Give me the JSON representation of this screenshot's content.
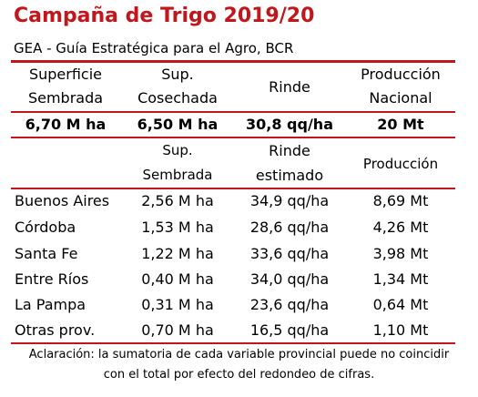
{
  "title": "Campaña de Trigo 2019/20",
  "subtitle": "GEA - Guía Estratégica para el Agro, BCR",
  "national": {
    "headers": {
      "superficie_1": "Superficie",
      "superficie_2": "Sembrada",
      "cosechada_1": "Sup.",
      "cosechada_2": "Cosechada",
      "rinde": "Rinde",
      "produccion_1": "Producción",
      "produccion_2": "Nacional"
    },
    "values": {
      "superficie": "6,70 M ha",
      "cosechada": "6,50 M ha",
      "rinde": "30,8 qq/ha",
      "produccion": "20 Mt"
    }
  },
  "provincial": {
    "headers": {
      "sembrada_1": "Sup.",
      "sembrada_2": "Sembrada",
      "rinde_1": "Rinde",
      "rinde_2": "estimado",
      "produccion": "Producción"
    },
    "rows": [
      {
        "province": "Buenos Aires",
        "sembrada": "2,56 M ha",
        "rinde": "34,9 qq/ha",
        "produccion": "8,69 Mt"
      },
      {
        "province": "Córdoba",
        "sembrada": "1,53 M ha",
        "rinde": "28,6 qq/ha",
        "produccion": "4,26 Mt"
      },
      {
        "province": "Santa Fe",
        "sembrada": "1,22 M ha",
        "rinde": "33,6 qq/ha",
        "produccion": "3,98 Mt"
      },
      {
        "province": "Entre Ríos",
        "sembrada": "0,40 M ha",
        "rinde": "34,0 qq/ha",
        "produccion": "1,34 Mt"
      },
      {
        "province": "La Pampa",
        "sembrada": "0,31 M ha",
        "rinde": "23,6 qq/ha",
        "produccion": "0,64 Mt"
      },
      {
        "province": "Otras prov.",
        "sembrada": "0,70 M ha",
        "rinde": "16,5 qq/ha",
        "produccion": "1,10 Mt"
      }
    ]
  },
  "note": {
    "line1": "Aclaración: la sumatoria de cada variable provincial puede no coincidir",
    "line2": "con el total por efecto del redondeo de cifras."
  },
  "colors": {
    "accent": "#c0161c"
  }
}
